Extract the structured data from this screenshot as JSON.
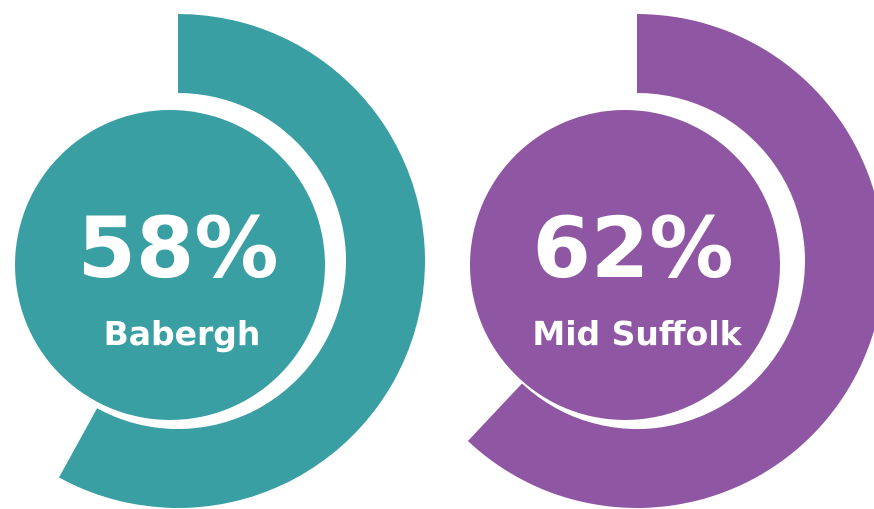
{
  "chart_data": [
    {
      "type": "gauge",
      "label": "Babergh",
      "value": 58,
      "value_label": "58%",
      "ylim": [
        0,
        100
      ],
      "color": "#3a9fa3"
    },
    {
      "type": "gauge",
      "label": "Mid Suffolk",
      "value": 62,
      "value_label": "62%",
      "ylim": [
        0,
        100
      ],
      "color": "#8f57a3"
    }
  ]
}
